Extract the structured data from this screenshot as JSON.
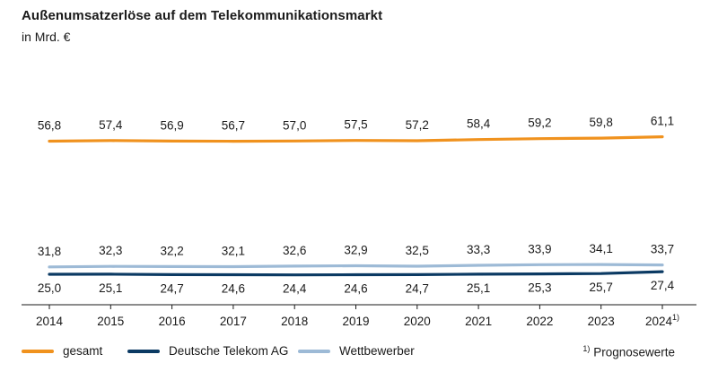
{
  "title": "Außenumsatzerlöse auf dem Telekommunikationsmarkt",
  "subtitle": "in Mrd. €",
  "footnote": {
    "marker": "1)",
    "text": "Prognosewerte"
  },
  "chart_data": {
    "type": "line",
    "categories": [
      "2014",
      "2015",
      "2016",
      "2017",
      "2018",
      "2019",
      "2020",
      "2021",
      "2022",
      "2023",
      "2024"
    ],
    "category_footnotes": {
      "2024": "1)"
    },
    "series": [
      {
        "name": "gesamt",
        "color": "#f0921e",
        "values": [
          56.8,
          57.4,
          56.9,
          56.7,
          57.0,
          57.5,
          57.2,
          58.4,
          59.2,
          59.8,
          61.1
        ],
        "labels": [
          "56,8",
          "57,4",
          "56,9",
          "56,7",
          "57,0",
          "57,5",
          "57,2",
          "58,4",
          "59,2",
          "59,8",
          "61,1"
        ]
      },
      {
        "name": "Deutsche Telekom AG",
        "color": "#0b3a63",
        "values": [
          25.0,
          25.1,
          24.7,
          24.6,
          24.4,
          24.6,
          24.7,
          25.1,
          25.3,
          25.7,
          27.4
        ],
        "labels": [
          "25,0",
          "25,1",
          "24,7",
          "24,6",
          "24,4",
          "24,6",
          "24,7",
          "25,1",
          "25,3",
          "25,7",
          "27,4"
        ]
      },
      {
        "name": "Wettbewerber",
        "color": "#9dbad6",
        "values": [
          31.8,
          32.3,
          32.2,
          32.1,
          32.6,
          32.9,
          32.5,
          33.3,
          33.9,
          34.1,
          33.7
        ],
        "labels": [
          "31,8",
          "32,3",
          "32,2",
          "32,1",
          "32,6",
          "32,9",
          "32,5",
          "33,3",
          "33,9",
          "34,1",
          "33,7"
        ]
      }
    ],
    "grid": false,
    "legend_position": "bottom"
  }
}
